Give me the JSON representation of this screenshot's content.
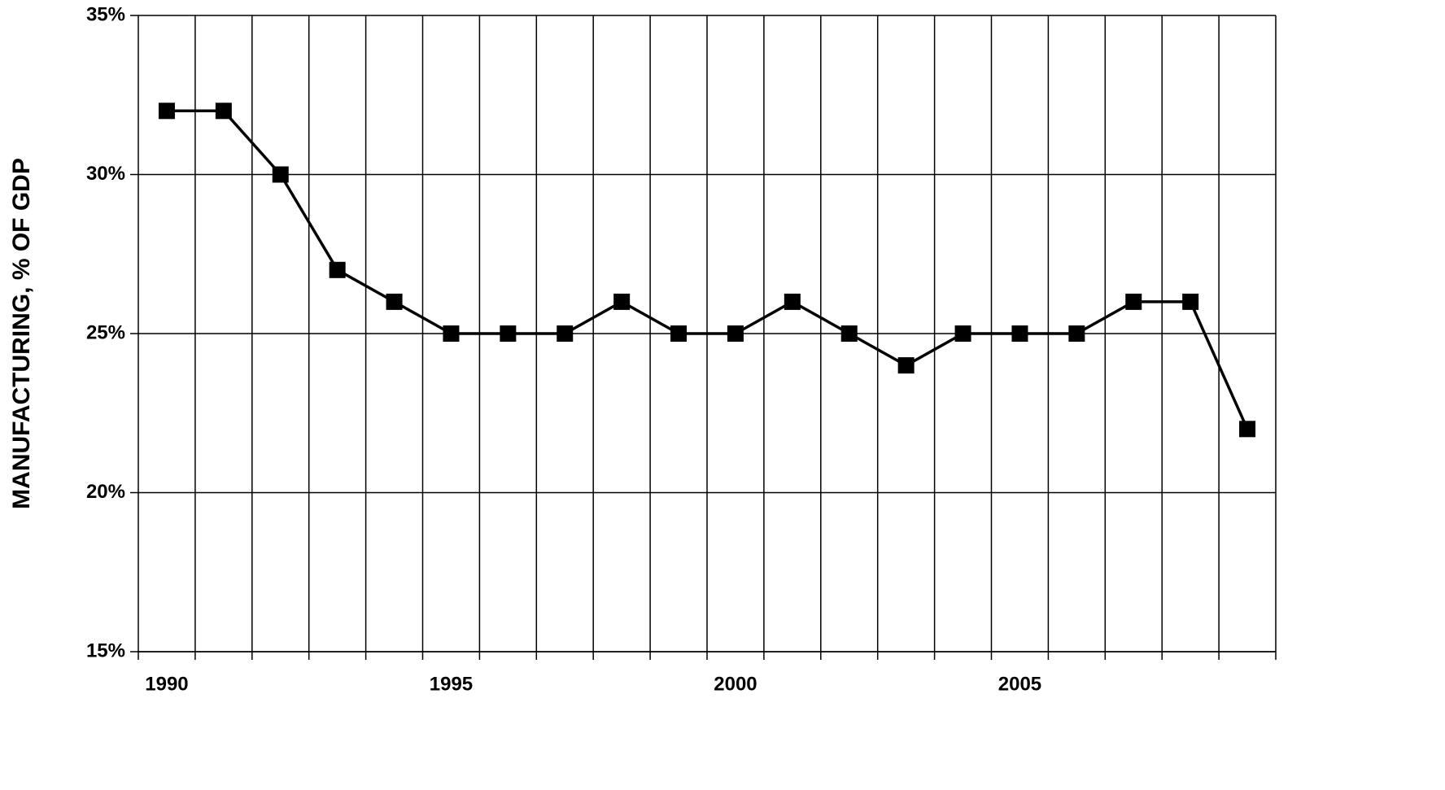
{
  "chart_data": {
    "type": "line",
    "y_label": "MANUFACTURING, % OF GDP",
    "categories": [
      "1990",
      null,
      null,
      null,
      null,
      "1995",
      null,
      null,
      null,
      null,
      "2000",
      null,
      null,
      null,
      null,
      "2005",
      null,
      null,
      null,
      null
    ],
    "values": [
      32,
      32,
      30,
      27,
      26,
      25,
      25,
      25,
      26,
      25,
      25,
      26,
      25,
      24,
      25,
      25,
      25,
      26,
      26,
      22
    ],
    "color": "#000000",
    "ylim": [
      15,
      35
    ],
    "yticks": [
      {
        "value": 15,
        "label": "15%"
      },
      {
        "value": 20,
        "label": "20%"
      },
      {
        "value": 25,
        "label": "25%"
      },
      {
        "value": 30,
        "label": "30%"
      },
      {
        "value": 35,
        "label": "35%"
      }
    ],
    "grid": true
  }
}
